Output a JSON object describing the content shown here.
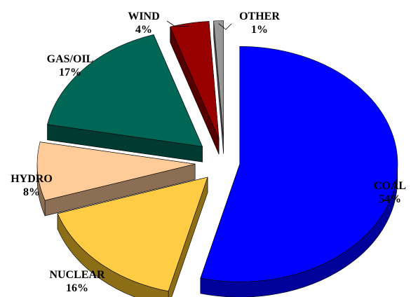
{
  "chart_data": {
    "type": "pie",
    "style": "3d-exploded",
    "legend": "none",
    "series": [
      {
        "label": "COAL",
        "value": 54,
        "percent_label": "54%",
        "color": "#0000FF",
        "side_color": "#00009A"
      },
      {
        "label": "NUCLEAR",
        "value": 16,
        "percent_label": "16%",
        "color": "#FFCC44",
        "side_color": "#8C6E16"
      },
      {
        "label": "HYDRO",
        "value": 8,
        "percent_label": "8%",
        "color": "#FFCC99",
        "side_color": "#8C6E55"
      },
      {
        "label": "GAS/OIL",
        "value": 17,
        "percent_label": "17%",
        "color": "#006655",
        "side_color": "#003A30"
      },
      {
        "label": "WIND",
        "value": 4,
        "percent_label": "4%",
        "color": "#990000",
        "side_color": "#550000"
      },
      {
        "label": "OTHER",
        "value": 1,
        "percent_label": "1%",
        "color": "#999999",
        "side_color": "#555555"
      }
    ]
  }
}
